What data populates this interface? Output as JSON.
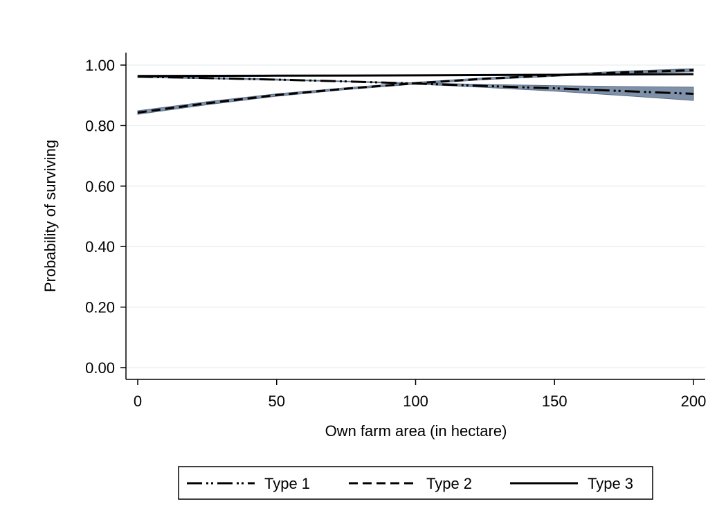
{
  "chart_data": {
    "type": "line",
    "title": "",
    "xlabel": "Own farm area (in hectare)",
    "ylabel": "Probability of surviving",
    "xlim": [
      0,
      200
    ],
    "ylim": [
      0,
      1
    ],
    "xticks": [
      0,
      50,
      100,
      150,
      200
    ],
    "xtick_labels": [
      "0",
      "50",
      "100",
      "150",
      "200"
    ],
    "yticks": [
      0,
      0.2,
      0.4,
      0.6,
      0.8,
      1.0
    ],
    "ytick_labels": [
      "0.00",
      "0.20",
      "0.40",
      "0.60",
      "0.80",
      "1.00"
    ],
    "grid": "horizontal",
    "legend_position": "bottom",
    "confidence_band_color": "#7f91a8",
    "series": [
      {
        "name": "Type 1",
        "line_style": "long-dash-dot-dot",
        "x": [
          0,
          25,
          50,
          75,
          100,
          125,
          150,
          175,
          200
        ],
        "y": [
          0.962,
          0.957,
          0.952,
          0.946,
          0.939,
          0.931,
          0.923,
          0.914,
          0.905
        ],
        "ci_lower": [
          0.959,
          0.955,
          0.95,
          0.945,
          0.937,
          0.926,
          0.914,
          0.899,
          0.883
        ],
        "ci_upper": [
          0.965,
          0.959,
          0.954,
          0.947,
          0.941,
          0.936,
          0.932,
          0.929,
          0.927
        ]
      },
      {
        "name": "Type 2",
        "line_style": "dashed",
        "x": [
          0,
          25,
          50,
          75,
          100,
          125,
          150,
          175,
          200
        ],
        "y": [
          0.843,
          0.874,
          0.901,
          0.922,
          0.94,
          0.955,
          0.966,
          0.976,
          0.983
        ],
        "ci_lower": [
          0.837,
          0.869,
          0.897,
          0.919,
          0.937,
          0.952,
          0.963,
          0.972,
          0.978
        ],
        "ci_upper": [
          0.849,
          0.879,
          0.905,
          0.925,
          0.943,
          0.958,
          0.969,
          0.98,
          0.988
        ]
      },
      {
        "name": "Type 3",
        "line_style": "solid",
        "x": [
          0,
          50,
          100,
          150,
          200
        ],
        "y": [
          0.964,
          0.965,
          0.966,
          0.968,
          0.97
        ]
      }
    ]
  }
}
